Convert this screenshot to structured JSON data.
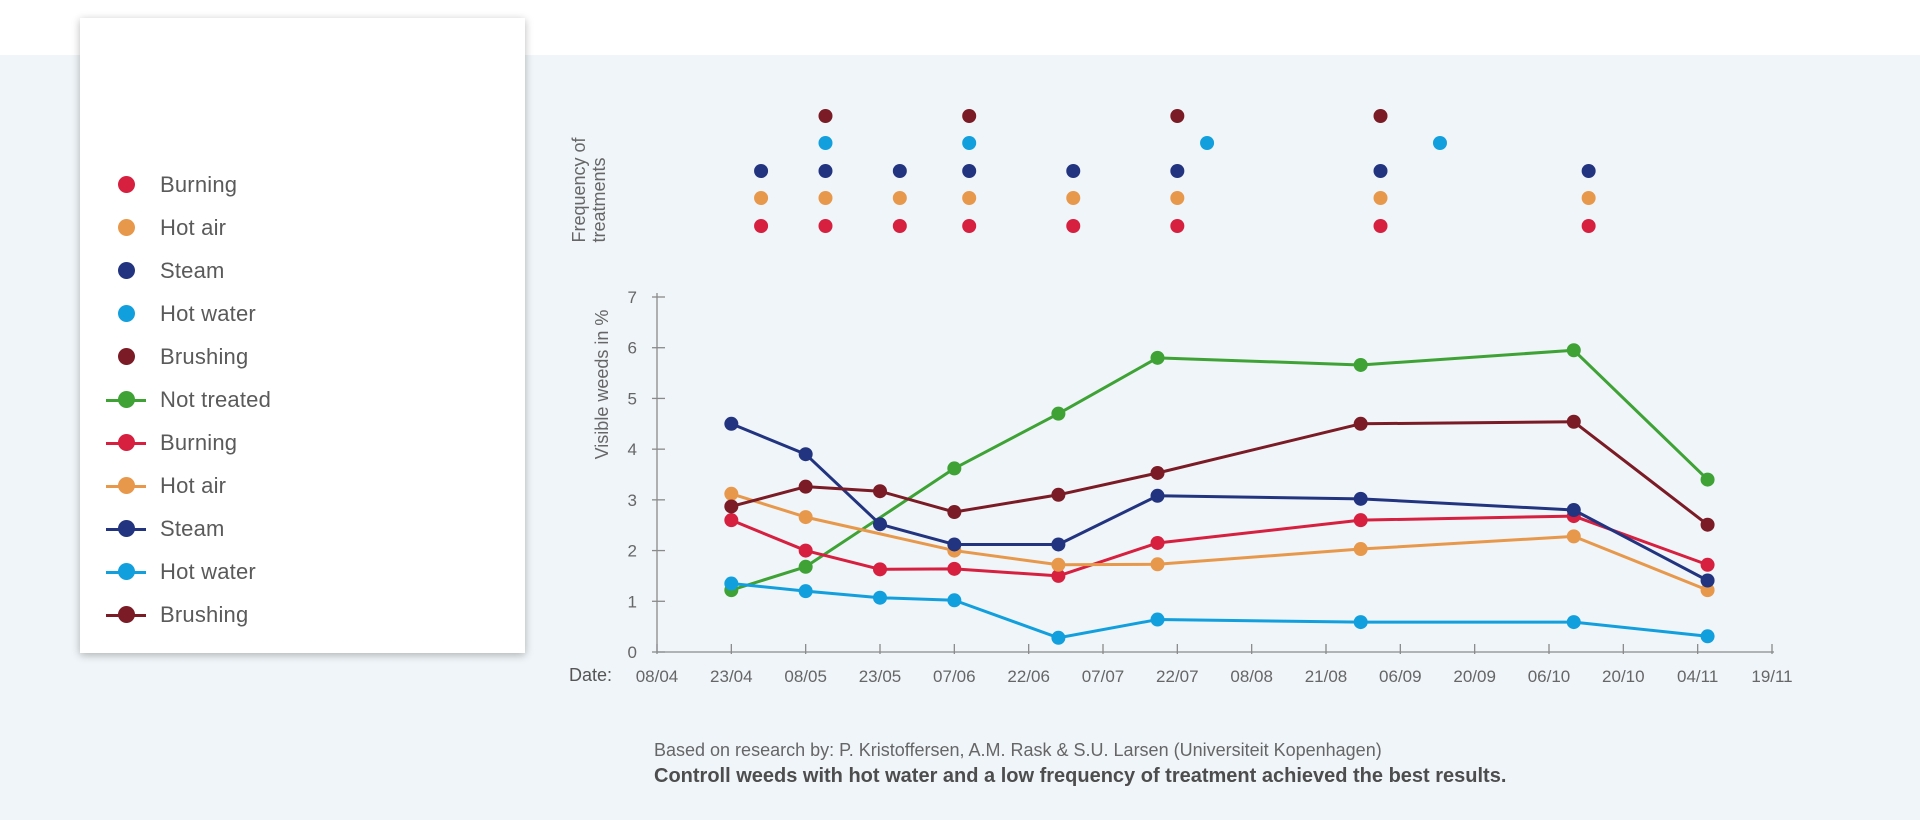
{
  "legend": {
    "items": [
      {
        "kind": "dot",
        "label": "Burning",
        "color": "#d71f3f"
      },
      {
        "kind": "dot",
        "label": "Hot air",
        "color": "#e8984a"
      },
      {
        "kind": "dot",
        "label": "Steam",
        "color": "#22347f"
      },
      {
        "kind": "dot",
        "label": "Hot water",
        "color": "#129fdd"
      },
      {
        "kind": "dot",
        "label": "Brushing",
        "color": "#7a1b25"
      },
      {
        "kind": "line",
        "label": "Not treated",
        "color": "#3ea235"
      },
      {
        "kind": "line",
        "label": "Burning",
        "color": "#d71f3f"
      },
      {
        "kind": "line",
        "label": "Hot air",
        "color": "#e8984a"
      },
      {
        "kind": "line",
        "label": "Steam",
        "color": "#22347f"
      },
      {
        "kind": "line",
        "label": "Hot water",
        "color": "#129fdd"
      },
      {
        "kind": "line",
        "label": "Brushing",
        "color": "#7a1b25"
      }
    ]
  },
  "footer": {
    "note": "Based on research by: P. Kristoffersen, A.M. Rask & S.U. Larsen (Universiteit Kopenhagen)",
    "headline": "Controll weeds with hot water and a low frequency of treatment achieved the best results."
  },
  "chart_data": {
    "type": "line",
    "date_label": "Date:",
    "ylabel": "Visible weeds in %",
    "freq_label_line1": "Frequency of",
    "freq_label_line2": "treatments",
    "ylim": [
      0,
      7
    ],
    "xlim": [
      0,
      225
    ],
    "y_ticks": [
      0,
      1,
      2,
      3,
      4,
      5,
      6,
      7
    ],
    "x_tick_labels": [
      "08/04",
      "23/04",
      "08/05",
      "23/05",
      "07/06",
      "22/06",
      "07/07",
      "22/07",
      "08/08",
      "21/08",
      "06/09",
      "20/09",
      "06/10",
      "20/10",
      "04/11",
      "19/11"
    ],
    "x_tick_days": [
      0,
      15,
      30,
      45,
      60,
      75,
      90,
      105,
      120,
      135,
      150,
      165,
      180,
      195,
      210,
      225
    ],
    "grid": false,
    "series": [
      {
        "name": "Not treated",
        "color": "#3ea235",
        "x": [
          15,
          30,
          60,
          81,
          101,
          142,
          185,
          212
        ],
        "y": [
          1.22,
          1.68,
          3.62,
          4.7,
          5.8,
          5.66,
          5.95,
          3.4
        ]
      },
      {
        "name": "Burning",
        "color": "#d71f3f",
        "x": [
          15,
          30,
          45,
          60,
          81,
          101,
          142,
          185,
          212
        ],
        "y": [
          2.6,
          2.0,
          1.63,
          1.64,
          1.5,
          2.15,
          2.6,
          2.68,
          1.72
        ]
      },
      {
        "name": "Hot air",
        "color": "#e8984a",
        "x": [
          15,
          30,
          60,
          81,
          101,
          142,
          185,
          212
        ],
        "y": [
          3.12,
          2.66,
          2.0,
          1.72,
          1.73,
          2.03,
          2.28,
          1.22
        ]
      },
      {
        "name": "Steam",
        "color": "#22347f",
        "x": [
          15,
          30,
          45,
          60,
          81,
          101,
          142,
          185,
          212
        ],
        "y": [
          4.5,
          3.9,
          2.52,
          2.12,
          2.12,
          3.08,
          3.02,
          2.8,
          1.41
        ]
      },
      {
        "name": "Hot water",
        "color": "#129fdd",
        "x": [
          15,
          30,
          45,
          60,
          81,
          101,
          142,
          185,
          212
        ],
        "y": [
          1.35,
          1.2,
          1.07,
          1.02,
          0.28,
          0.64,
          0.59,
          0.59,
          0.31
        ]
      },
      {
        "name": "Brushing",
        "color": "#7a1b25",
        "x": [
          15,
          30,
          45,
          60,
          81,
          101,
          142,
          185,
          212
        ],
        "y": [
          2.87,
          3.26,
          3.17,
          2.76,
          3.1,
          3.53,
          4.5,
          4.54,
          2.51
        ]
      }
    ],
    "treatments": [
      {
        "name": "Brushing",
        "color": "#7a1b25",
        "days": [
          34,
          63,
          105,
          146
        ]
      },
      {
        "name": "Hot water",
        "color": "#129fdd",
        "days": [
          34,
          63,
          111,
          158
        ]
      },
      {
        "name": "Steam",
        "color": "#22347f",
        "days": [
          21,
          34,
          49,
          63,
          84,
          105,
          146,
          188
        ]
      },
      {
        "name": "Hot air",
        "color": "#e8984a",
        "days": [
          21,
          34,
          49,
          63,
          84,
          105,
          146,
          188
        ]
      },
      {
        "name": "Burning",
        "color": "#d71f3f",
        "days": [
          21,
          34,
          49,
          63,
          84,
          105,
          146,
          188
        ]
      }
    ]
  }
}
